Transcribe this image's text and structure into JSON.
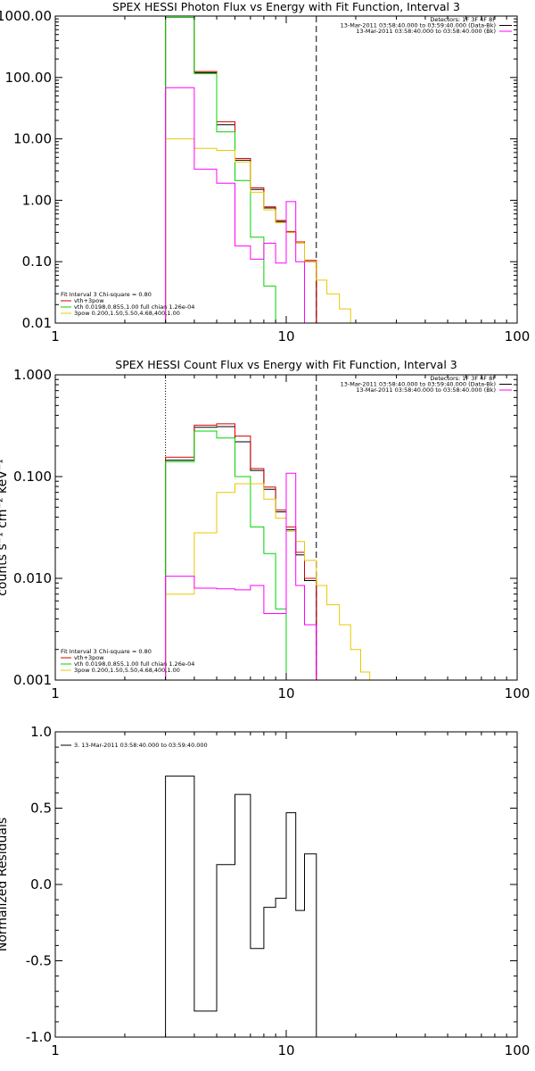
{
  "chart_data": [
    {
      "type": "line",
      "title": "SPEX HESSI Photon Flux vs Energy with Fit Function, Interval 3",
      "xlabel": "",
      "ylabel": "",
      "xscale": "log",
      "yscale": "log",
      "xlim": [
        1,
        100
      ],
      "ylim": [
        0.01,
        1000
      ],
      "xticks": [
        {
          "v": 1,
          "label": "1"
        },
        {
          "v": 10,
          "label": "10"
        },
        {
          "v": 100,
          "label": "100"
        }
      ],
      "yticks": [
        {
          "v": 1000,
          "label": "1000.00"
        },
        {
          "v": 100,
          "label": "100.00"
        },
        {
          "v": 10,
          "label": "10.00"
        },
        {
          "v": 1,
          "label": "1.00"
        },
        {
          "v": 0.1,
          "label": "0.10"
        },
        {
          "v": 0.01,
          "label": "0.01"
        }
      ],
      "vlines": [
        {
          "x": 3,
          "style": "dotted"
        },
        {
          "x": 13.5,
          "style": "dashed"
        }
      ],
      "legend_right": [
        {
          "text": "Detectors: 1F 3F 4F 8F",
          "line": false
        },
        {
          "text": "13-Mar-2011 03:58:40.000 to 03:59:40.000 (Data-Bk)",
          "line": true,
          "color": "#000000"
        },
        {
          "text": "13-Mar-2011 03:58:40.000 to 03:58:40.000 (Bk)",
          "line": true,
          "color": "#ff00ff"
        }
      ],
      "legend_left": [
        {
          "text": "Fit Interval 3   Chi-square = 0.80",
          "line": false
        },
        {
          "text": "vth+3pow",
          "color": "#d40000"
        },
        {
          "text": "vth 0.0198,0.855,1.00  full chian 1.26e-04",
          "color": "#00d400"
        },
        {
          "text": "3pow 0.200,1.50,5.50,4.68,400,1.00",
          "color": "#e8c800"
        }
      ],
      "edges": [
        3,
        4,
        5,
        6,
        7,
        8,
        9,
        10,
        11,
        12,
        13.5,
        15,
        17,
        19,
        21
      ],
      "series": [
        {
          "color": "#000000",
          "values": [
            1000,
            120,
            17,
            4.5,
            1.5,
            0.75,
            0.45,
            0.3,
            0.2,
            0.1,
            null,
            null,
            null,
            null
          ]
        },
        {
          "color": "#d40000",
          "values": [
            1000,
            125,
            19,
            4.8,
            1.6,
            0.78,
            0.47,
            0.31,
            0.21,
            0.105,
            null,
            null,
            null,
            null
          ]
        },
        {
          "color": "#00d400",
          "values": [
            950,
            115,
            13,
            2.1,
            0.25,
            0.04,
            0.005,
            null,
            null,
            null,
            null,
            null,
            null,
            null
          ]
        },
        {
          "color": "#e8c800",
          "values": [
            10,
            7,
            6.5,
            4.2,
            1.35,
            0.7,
            0.43,
            0.3,
            0.2,
            0.1,
            0.05,
            0.03,
            0.017,
            0.01
          ]
        },
        {
          "color": "#ff00ff",
          "values": [
            68,
            3.2,
            1.9,
            0.18,
            0.11,
            0.2,
            0.095,
            0.95,
            0.1,
            0.005,
            null,
            null,
            null,
            null
          ]
        }
      ]
    },
    {
      "type": "line",
      "title": "SPEX HESSI Count Flux vs Energy with Fit Function, Interval 3",
      "xlabel": "",
      "ylabel": "counts s⁻¹ cm⁻² keV⁻¹",
      "xscale": "log",
      "yscale": "log",
      "xlim": [
        1,
        100
      ],
      "ylim": [
        0.001,
        1
      ],
      "xticks": [
        {
          "v": 1,
          "label": "1"
        },
        {
          "v": 10,
          "label": "10"
        },
        {
          "v": 100,
          "label": "100"
        }
      ],
      "yticks": [
        {
          "v": 1,
          "label": "1.000"
        },
        {
          "v": 0.1,
          "label": "0.100"
        },
        {
          "v": 0.01,
          "label": "0.010"
        },
        {
          "v": 0.001,
          "label": "0.001"
        }
      ],
      "vlines": [
        {
          "x": 3,
          "style": "dotted"
        },
        {
          "x": 13.5,
          "style": "dashed"
        }
      ],
      "legend_right": [
        {
          "text": "Detectors: 1F 3F 4F 8F",
          "line": false
        },
        {
          "text": "13-Mar-2011 03:58:40.000 to 03:59:40.000 (Data-Bk)",
          "line": true,
          "color": "#000000"
        },
        {
          "text": "13-Mar-2011 03:58:40.000 to 03:58:40.000 (Bk)",
          "line": true,
          "color": "#ff00ff"
        }
      ],
      "legend_left": [
        {
          "text": "Fit Interval 3   Chi-square = 0.80",
          "line": false
        },
        {
          "text": "vth+3pow",
          "color": "#d40000"
        },
        {
          "text": "vth 0.0198,0.855,1.00  full chian 1.26e-04",
          "color": "#00d400"
        },
        {
          "text": "3pow 0.200,1.50,5.50,4.68,400,1.00",
          "color": "#e8c800"
        }
      ],
      "edges": [
        3,
        4,
        5,
        6,
        7,
        8,
        9,
        10,
        11,
        12,
        13.5,
        15,
        17,
        19,
        21,
        23
      ],
      "series": [
        {
          "color": "#000000",
          "values": [
            0.145,
            0.305,
            0.31,
            0.22,
            0.115,
            0.075,
            0.045,
            0.03,
            0.017,
            0.0095,
            null,
            null,
            null,
            null,
            null
          ]
        },
        {
          "color": "#d40000",
          "values": [
            0.155,
            0.32,
            0.33,
            0.25,
            0.12,
            0.079,
            0.047,
            0.032,
            0.018,
            0.01,
            null,
            null,
            null,
            null,
            null
          ]
        },
        {
          "color": "#00d400",
          "values": [
            0.14,
            0.28,
            0.24,
            0.1,
            0.032,
            0.0175,
            0.005,
            0.001,
            null,
            null,
            null,
            null,
            null,
            null,
            null
          ]
        },
        {
          "color": "#e8c800",
          "values": [
            0.007,
            0.028,
            0.07,
            0.085,
            0.085,
            0.06,
            0.039,
            0.029,
            0.023,
            0.015,
            0.0085,
            0.0055,
            0.0035,
            0.002,
            0.0012
          ]
        },
        {
          "color": "#ff00ff",
          "values": [
            0.0105,
            0.008,
            0.0079,
            0.0077,
            0.0085,
            0.0045,
            0.0045,
            0.108,
            0.0085,
            0.0035,
            null,
            null,
            null,
            null,
            null
          ]
        }
      ]
    },
    {
      "type": "line",
      "title": "",
      "xlabel": "",
      "ylabel": "Normalized Residuals",
      "xscale": "log",
      "yscale": "linear",
      "xlim": [
        1,
        100
      ],
      "ylim": [
        -1.0,
        1.0
      ],
      "xticks": [
        {
          "v": 1,
          "label": "1"
        },
        {
          "v": 10,
          "label": "10"
        },
        {
          "v": 100,
          "label": "100"
        }
      ],
      "yticks": [
        {
          "v": 1,
          "label": "1.0"
        },
        {
          "v": 0.5,
          "label": "0.5"
        },
        {
          "v": 0,
          "label": "0.0"
        },
        {
          "v": -0.5,
          "label": "-0.5"
        },
        {
          "v": -1,
          "label": "-1.0"
        }
      ],
      "legend_left": [
        {
          "text": "3. 13-Mar-2011 03:58:40.000 to 03:59:40.000",
          "color": "#000000"
        }
      ],
      "edges": [
        3,
        4,
        5,
        6,
        7,
        8,
        9,
        10,
        11,
        12,
        13.5
      ],
      "series": [
        {
          "color": "#000000",
          "values": [
            0.71,
            -0.83,
            0.13,
            0.59,
            -0.42,
            -0.15,
            -0.09,
            0.47,
            -0.17,
            0.2
          ],
          "floor": -1.0
        }
      ]
    }
  ]
}
